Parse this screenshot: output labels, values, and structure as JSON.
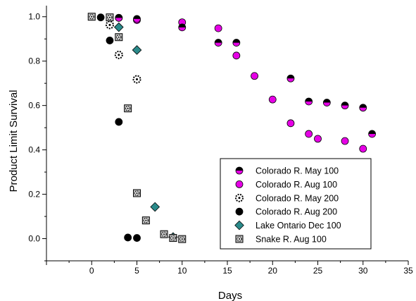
{
  "chart_data": {
    "type": "scatter",
    "xlabel": "Days",
    "ylabel": "Product Limit Survival",
    "xlim": [
      -5,
      35
    ],
    "ylim": [
      -0.1,
      1.05
    ],
    "x_ticks": [
      0,
      5,
      10,
      15,
      20,
      25,
      30,
      35
    ],
    "y_ticks": [
      0.0,
      0.2,
      0.4,
      0.6,
      0.8,
      1.0
    ],
    "x_tick_labels": [
      "0",
      "5",
      "10",
      "15",
      "20",
      "25",
      "30",
      "35"
    ],
    "y_tick_labels": [
      "0.0",
      "0.2",
      "0.4",
      "0.6",
      "0.8",
      "1.0"
    ],
    "grid": false,
    "legend_position": "lower-right",
    "series": [
      {
        "name": "Colorado R. May 100",
        "marker": "half-filled-circle",
        "colors": [
          "#000000",
          "#e600e6"
        ],
        "points": [
          [
            3,
            0.995
          ],
          [
            5,
            0.99
          ],
          [
            10,
            0.952
          ],
          [
            14,
            0.883
          ],
          [
            16,
            0.883
          ],
          [
            22,
            0.722
          ],
          [
            24,
            0.618
          ],
          [
            26,
            0.613
          ],
          [
            28,
            0.6
          ],
          [
            30,
            0.59
          ],
          [
            31,
            0.472
          ]
        ]
      },
      {
        "name": "Colorado R. Aug 100",
        "marker": "circle",
        "colors": [
          "#e600e6",
          "#000000"
        ],
        "points": [
          [
            3,
            0.995
          ],
          [
            5,
            0.985
          ],
          [
            10,
            0.975
          ],
          [
            14,
            0.948
          ],
          [
            16,
            0.825
          ],
          [
            18,
            0.733
          ],
          [
            20,
            0.627
          ],
          [
            22,
            0.52
          ],
          [
            24,
            0.472
          ],
          [
            25,
            0.45
          ],
          [
            28,
            0.44
          ],
          [
            30,
            0.405
          ]
        ]
      },
      {
        "name": "Colorado R. May 200",
        "marker": "dotted-circle",
        "colors": [
          "#000000",
          "#ffffff"
        ],
        "points": [
          [
            2,
            0.963
          ],
          [
            3,
            0.828
          ],
          [
            5,
            0.718
          ]
        ]
      },
      {
        "name": "Colorado R. Aug 200",
        "marker": "circle",
        "colors": [
          "#000000",
          "#000000"
        ],
        "points": [
          [
            0,
            1.0
          ],
          [
            1,
            0.997
          ],
          [
            2,
            0.893
          ],
          [
            3,
            0.526
          ],
          [
            4,
            0.005
          ],
          [
            5,
            0.003
          ]
        ]
      },
      {
        "name": "Lake Ontario Dec 100",
        "marker": "diamond",
        "colors": [
          "#2a8a8a",
          "#000000"
        ],
        "points": [
          [
            3,
            0.953
          ],
          [
            5,
            0.85
          ],
          [
            7,
            0.143
          ],
          [
            9,
            0.007
          ]
        ]
      },
      {
        "name": "Snake R. Aug 100",
        "marker": "square-dot",
        "colors": [
          "#b8b8b8",
          "#000000"
        ],
        "points": [
          [
            0,
            1.0
          ],
          [
            2,
            0.997
          ],
          [
            3,
            0.908
          ],
          [
            4,
            0.587
          ],
          [
            5,
            0.205
          ],
          [
            6,
            0.082
          ],
          [
            8,
            0.02
          ],
          [
            9,
            0.003
          ],
          [
            10,
            -0.002
          ]
        ]
      }
    ]
  }
}
